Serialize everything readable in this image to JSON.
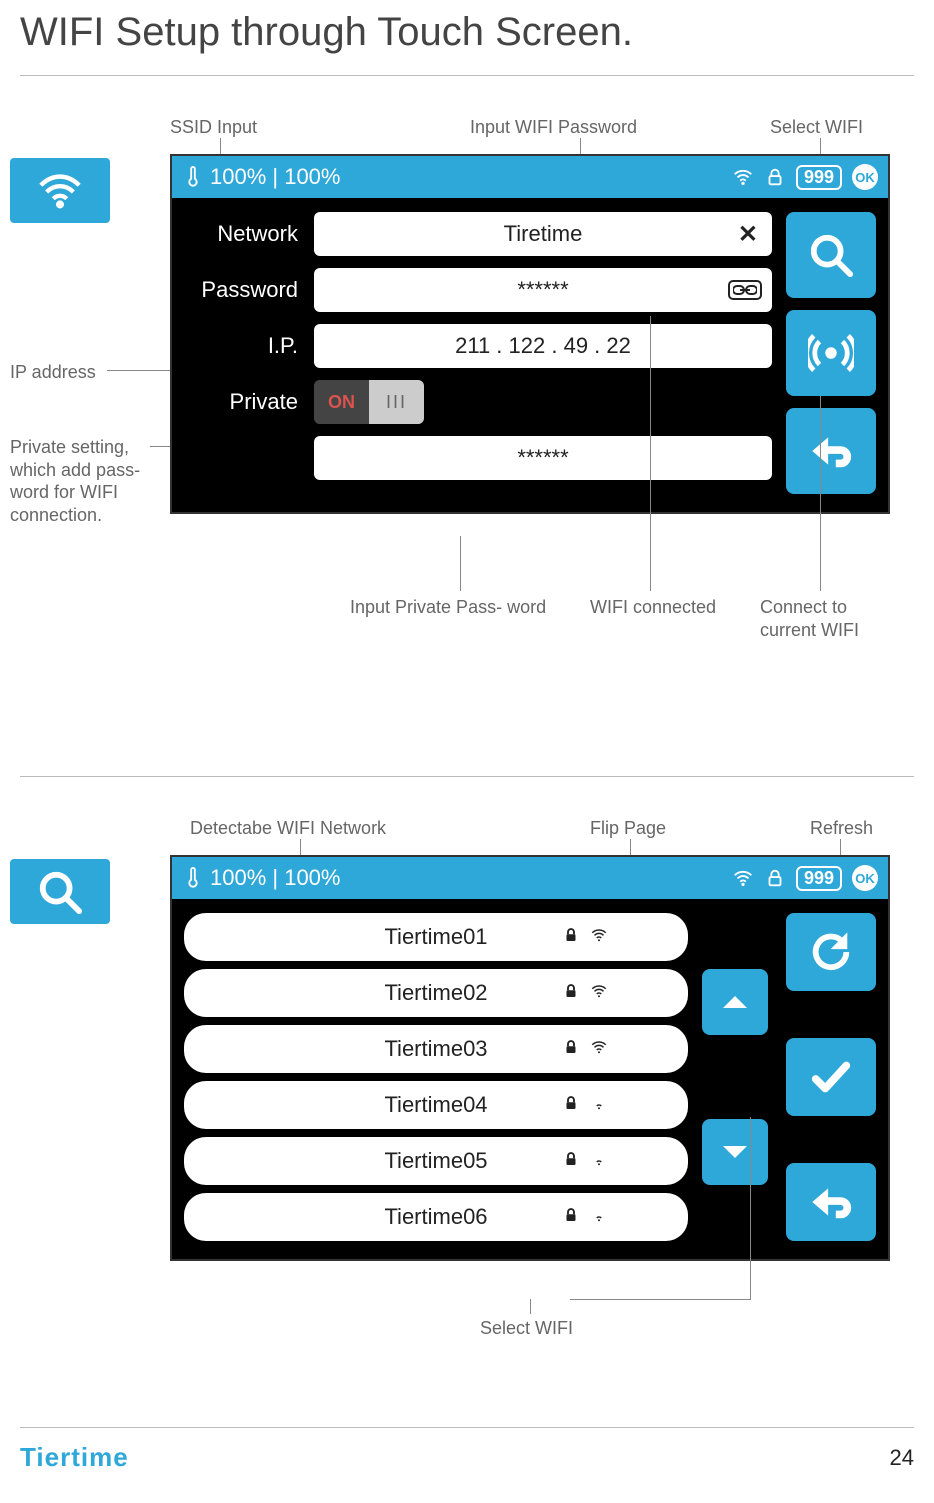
{
  "page": {
    "title": "WIFI Setup through Touch Screen.",
    "page_number": "24",
    "brand": "Tiertime"
  },
  "colors": {
    "accent": "#2ea7d9",
    "screen_bg": "#000000",
    "field_bg": "#ffffff",
    "text_light": "#ffffff",
    "anno": "#666666"
  },
  "screen1": {
    "topbar": {
      "left": "100% | 100%",
      "counter": "999",
      "ok": "OK"
    },
    "rows": {
      "network": {
        "label": "Network",
        "value": "Tiretime"
      },
      "password": {
        "label": "Password",
        "value": "******"
      },
      "ip": {
        "label": "I.P.",
        "value": "211 . 122 .  49 . 22"
      },
      "private": {
        "label": "Private",
        "toggle_on": "ON",
        "toggle_off": "III"
      },
      "private_pw": {
        "value": "******"
      }
    },
    "annotations": {
      "ssid_input": "SSID Input",
      "input_wifi_pw": "Input WIFI Password",
      "select_wifi": "Select WIFI",
      "ip_address": "IP address",
      "private_setting": "Private setting,\nwhich add pass-\nword for WIFI\nconnection.",
      "input_private_pw": "Input Private Pass- word",
      "wifi_connected": "WIFI connected",
      "connect_current": "Connect to\ncurrent WIFI"
    }
  },
  "screen2": {
    "topbar": {
      "left": "100% | 100%",
      "counter": "999",
      "ok": "OK"
    },
    "networks": [
      {
        "name": "Tiertime01",
        "locked": true,
        "signal": "strong"
      },
      {
        "name": "Tiertime02",
        "locked": true,
        "signal": "strong"
      },
      {
        "name": "Tiertime03",
        "locked": true,
        "signal": "strong"
      },
      {
        "name": "Tiertime04",
        "locked": true,
        "signal": "weak"
      },
      {
        "name": "Tiertime05",
        "locked": true,
        "signal": "weak"
      },
      {
        "name": "Tiertime06",
        "locked": true,
        "signal": "weak"
      }
    ],
    "annotations": {
      "detectable": "Detectabe WIFI Network",
      "flip_page": "Flip Page",
      "refresh": "Refresh",
      "select_wifi": "Select WIFI"
    }
  }
}
